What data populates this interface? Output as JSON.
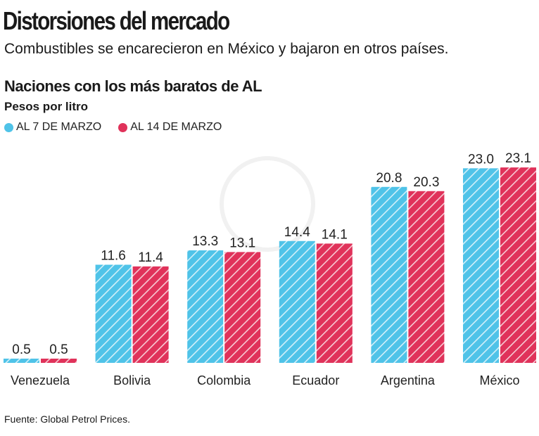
{
  "header": {
    "title": "Distorsiones del mercado",
    "subtitle": "Combustibles se encarecieron en México y bajaron en otros países."
  },
  "chart_data": {
    "type": "bar",
    "title": "Naciones con los más baratos de AL",
    "ylabel": "Pesos por litro",
    "categories": [
      "Venezuela",
      "Bolivia",
      "Colombia",
      "Ecuador",
      "Argentina",
      "México"
    ],
    "series": [
      {
        "name": "AL 7 DE MARZO",
        "color": "#4fc3e8",
        "values": [
          0.5,
          11.6,
          13.3,
          14.4,
          20.8,
          23.0
        ]
      },
      {
        "name": "AL 14 DE MARZO",
        "color": "#e0325a",
        "values": [
          0.5,
          11.4,
          13.1,
          14.1,
          20.3,
          23.1
        ]
      }
    ],
    "ylim": [
      0,
      23.1
    ],
    "grid": false,
    "legend": "top-left",
    "bar_pattern": "diagonal-hatch"
  },
  "footer": {
    "source": "Fuente: Global Petrol Prices."
  }
}
